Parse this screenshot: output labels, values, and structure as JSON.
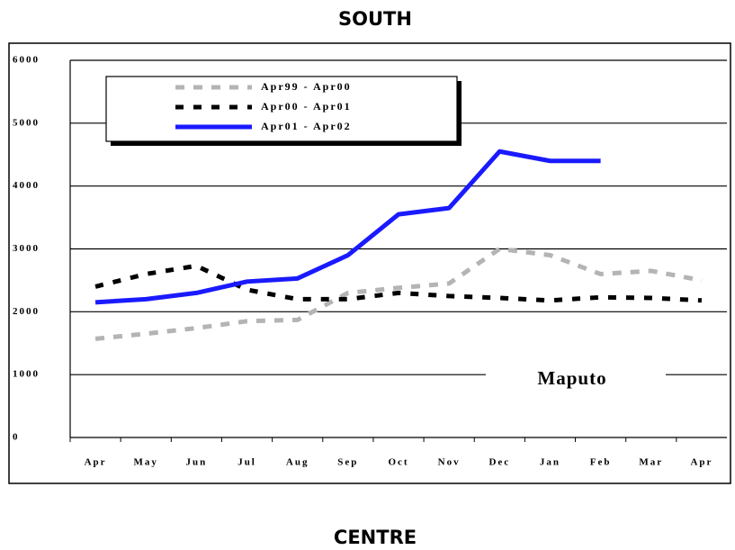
{
  "chart_data": {
    "type": "line",
    "title": "SOUTH",
    "annotation": "Maputo",
    "categories": [
      "Apr",
      "May",
      "Jun",
      "Jul",
      "Aug",
      "Sep",
      "Oct",
      "Nov",
      "Dec",
      "Jan",
      "Feb",
      "Mar",
      "Apr"
    ],
    "series": [
      {
        "name": "Apr99 - Apr00",
        "color": "#b4b4b4",
        "dash": "dashed",
        "values": [
          1570,
          1650,
          1740,
          1850,
          1870,
          2300,
          2380,
          2450,
          3000,
          2900,
          2600,
          2650,
          2500
        ]
      },
      {
        "name": "Apr00 - Apr01",
        "color": "#000000",
        "dash": "dashed",
        "values": [
          2400,
          2600,
          2730,
          2350,
          2200,
          2200,
          2300,
          2250,
          2220,
          2180,
          2230,
          2220,
          2180
        ]
      },
      {
        "name": "Apr01 - Apr02",
        "color": "#1a1aff",
        "dash": "solid",
        "values": [
          2150,
          2200,
          2300,
          2480,
          2530,
          2900,
          3550,
          3650,
          4550,
          4400,
          4400,
          null,
          null
        ]
      }
    ],
    "ylim": [
      0,
      6000
    ],
    "yticks": [
      0,
      1000,
      2000,
      3000,
      4000,
      5000,
      6000
    ],
    "grid": true
  },
  "next_section": {
    "title": "CENTRE"
  }
}
